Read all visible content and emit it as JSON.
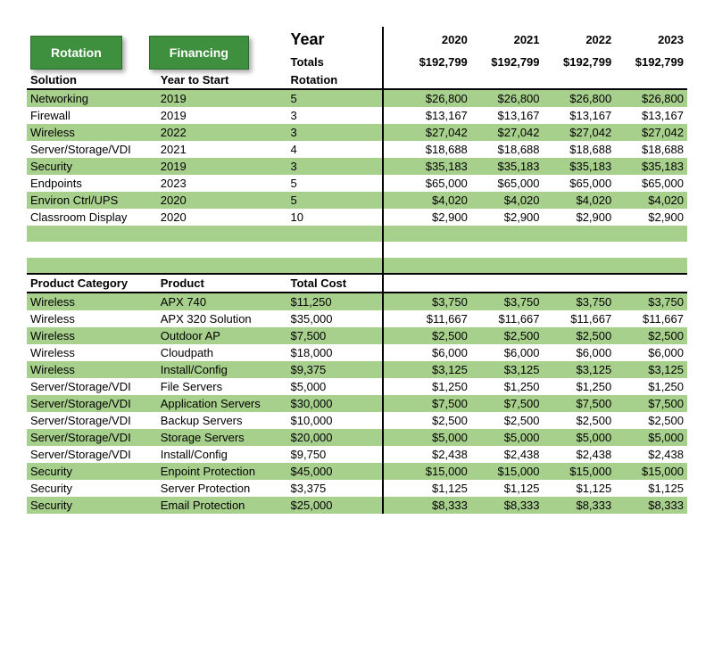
{
  "buttons": {
    "rotation": "Rotation",
    "financing": "Financing"
  },
  "header": {
    "year_label": "Year",
    "totals_label": "Totals",
    "years": [
      "2020",
      "2021",
      "2022",
      "2023"
    ],
    "totals": [
      "$192,799",
      "$192,799",
      "$192,799",
      "$192,799"
    ]
  },
  "colors": {
    "button_bg": "#3e8f3e",
    "button_border": "#2d6a2d",
    "zebra": "#a8d08d",
    "rule": "#000000"
  },
  "solutions": {
    "headers": [
      "Solution",
      "Year to Start",
      "Rotation"
    ],
    "rows": [
      {
        "c": [
          "Networking",
          "2019",
          "5"
        ],
        "y": [
          "$26,800",
          "$26,800",
          "$26,800",
          "$26,800"
        ]
      },
      {
        "c": [
          "Firewall",
          "2019",
          "3"
        ],
        "y": [
          "$13,167",
          "$13,167",
          "$13,167",
          "$13,167"
        ]
      },
      {
        "c": [
          "Wireless",
          "2022",
          "3"
        ],
        "y": [
          "$27,042",
          "$27,042",
          "$27,042",
          "$27,042"
        ]
      },
      {
        "c": [
          "Server/Storage/VDI",
          "2021",
          "4"
        ],
        "y": [
          "$18,688",
          "$18,688",
          "$18,688",
          "$18,688"
        ]
      },
      {
        "c": [
          "Security",
          "2019",
          "3"
        ],
        "y": [
          "$35,183",
          "$35,183",
          "$35,183",
          "$35,183"
        ]
      },
      {
        "c": [
          "Endpoints",
          "2023",
          "5"
        ],
        "y": [
          "$65,000",
          "$65,000",
          "$65,000",
          "$65,000"
        ]
      },
      {
        "c": [
          "Environ Ctrl/UPS",
          "2020",
          "5"
        ],
        "y": [
          "$4,020",
          "$4,020",
          "$4,020",
          "$4,020"
        ]
      },
      {
        "c": [
          "Classroom Display",
          "2020",
          "10"
        ],
        "y": [
          "$2,900",
          "$2,900",
          "$2,900",
          "$2,900"
        ]
      }
    ]
  },
  "products": {
    "headers": [
      "Product Category",
      "Product",
      "Total Cost"
    ],
    "rows": [
      {
        "c": [
          "Wireless",
          "APX 740",
          "$11,250"
        ],
        "y": [
          "$3,750",
          "$3,750",
          "$3,750",
          "$3,750"
        ]
      },
      {
        "c": [
          "Wireless",
          "APX 320 Solution",
          "$35,000"
        ],
        "y": [
          "$11,667",
          "$11,667",
          "$11,667",
          "$11,667"
        ]
      },
      {
        "c": [
          "Wireless",
          "Outdoor AP",
          "$7,500"
        ],
        "y": [
          "$2,500",
          "$2,500",
          "$2,500",
          "$2,500"
        ]
      },
      {
        "c": [
          "Wireless",
          "Cloudpath",
          "$18,000"
        ],
        "y": [
          "$6,000",
          "$6,000",
          "$6,000",
          "$6,000"
        ]
      },
      {
        "c": [
          "Wireless",
          "Install/Config",
          "$9,375"
        ],
        "y": [
          "$3,125",
          "$3,125",
          "$3,125",
          "$3,125"
        ]
      },
      {
        "c": [
          "Server/Storage/VDI",
          "File Servers",
          "$5,000"
        ],
        "y": [
          "$1,250",
          "$1,250",
          "$1,250",
          "$1,250"
        ]
      },
      {
        "c": [
          "Server/Storage/VDI",
          "Application Servers",
          "$30,000"
        ],
        "y": [
          "$7,500",
          "$7,500",
          "$7,500",
          "$7,500"
        ]
      },
      {
        "c": [
          "Server/Storage/VDI",
          "Backup Servers",
          "$10,000"
        ],
        "y": [
          "$2,500",
          "$2,500",
          "$2,500",
          "$2,500"
        ]
      },
      {
        "c": [
          "Server/Storage/VDI",
          "Storage Servers",
          "$20,000"
        ],
        "y": [
          "$5,000",
          "$5,000",
          "$5,000",
          "$5,000"
        ]
      },
      {
        "c": [
          "Server/Storage/VDI",
          "Install/Config",
          "$9,750"
        ],
        "y": [
          "$2,438",
          "$2,438",
          "$2,438",
          "$2,438"
        ]
      },
      {
        "c": [
          "Security",
          "Enpoint Protection",
          "$45,000"
        ],
        "y": [
          "$15,000",
          "$15,000",
          "$15,000",
          "$15,000"
        ]
      },
      {
        "c": [
          "Security",
          "Server Protection",
          "$3,375"
        ],
        "y": [
          "$1,125",
          "$1,125",
          "$1,125",
          "$1,125"
        ]
      },
      {
        "c": [
          "Security",
          "Email Protection",
          "$25,000"
        ],
        "y": [
          "$8,333",
          "$8,333",
          "$8,333",
          "$8,333"
        ]
      }
    ]
  }
}
